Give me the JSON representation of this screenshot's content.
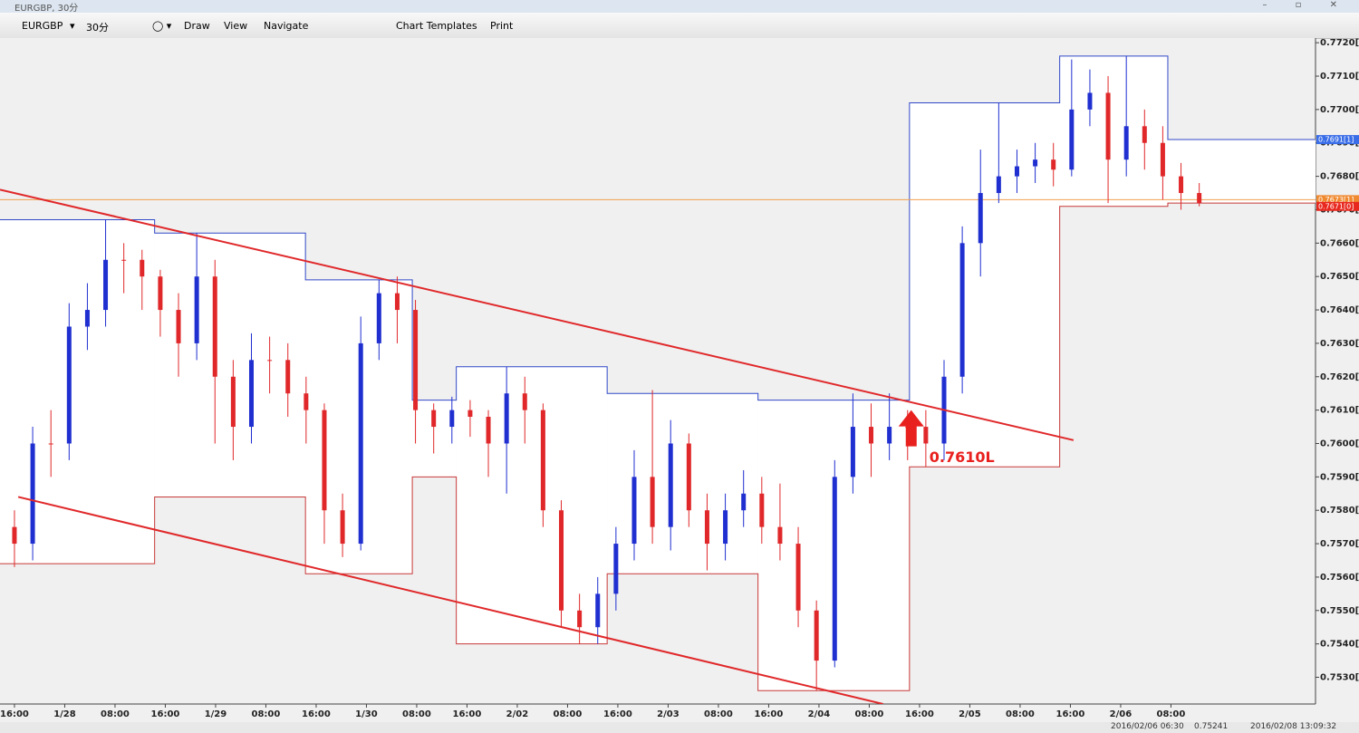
{
  "window": {
    "title": "EURGBP, 30分"
  },
  "toolbar": {
    "symbol": "EURGBP",
    "timeframe": "30分",
    "menus": [
      "Draw",
      "View",
      "Navigate",
      "Chart Templates",
      "Print"
    ]
  },
  "status_bar": {
    "time": "2016/02/06 06:30",
    "price": "0.75241",
    "clock": "2016/02/08 13:09:32"
  },
  "chart_data": {
    "type": "candlestick",
    "xlim": [
      -2.3,
      207
    ],
    "ylim": [
      0.7522,
      0.77214
    ],
    "xticks": [
      {
        "value": 0,
        "label": "16:00"
      },
      {
        "value": 8,
        "label": "1/28"
      },
      {
        "value": 16,
        "label": "08:00"
      },
      {
        "value": 24,
        "label": "16:00"
      },
      {
        "value": 32,
        "label": "1/29"
      },
      {
        "value": 40,
        "label": "08:00"
      },
      {
        "value": 48,
        "label": "16:00"
      },
      {
        "value": 56,
        "label": "1/30"
      },
      {
        "value": 64,
        "label": "08:00"
      },
      {
        "value": 72,
        "label": "16:00"
      },
      {
        "value": 80,
        "label": "2/02"
      },
      {
        "value": 88,
        "label": "08:00"
      },
      {
        "value": 96,
        "label": "16:00"
      },
      {
        "value": 104,
        "label": "2/03"
      },
      {
        "value": 112,
        "label": "08:00"
      },
      {
        "value": 120,
        "label": "16:00"
      },
      {
        "value": 128,
        "label": "2/04"
      },
      {
        "value": 136,
        "label": "08:00"
      },
      {
        "value": 144,
        "label": "16:00"
      },
      {
        "value": 152,
        "label": "2/05"
      },
      {
        "value": 160,
        "label": "08:00"
      },
      {
        "value": 168,
        "label": "16:00"
      },
      {
        "value": 176,
        "label": "2/06"
      },
      {
        "value": 184,
        "label": "08:00"
      }
    ],
    "yticks": [
      {
        "value": 0.753,
        "label": "0.7530[0]"
      },
      {
        "value": 0.754,
        "label": "0.7540[0]"
      },
      {
        "value": 0.755,
        "label": "0.7550[0]"
      },
      {
        "value": 0.756,
        "label": "0.7560[0]"
      },
      {
        "value": 0.757,
        "label": "0.7570[0]"
      },
      {
        "value": 0.758,
        "label": "0.7580[0]"
      },
      {
        "value": 0.759,
        "label": "0.7590[0]"
      },
      {
        "value": 0.76,
        "label": "0.7600[0]"
      },
      {
        "value": 0.761,
        "label": "0.7610[0]"
      },
      {
        "value": 0.762,
        "label": "0.7620[0]"
      },
      {
        "value": 0.763,
        "label": "0.7630[0]"
      },
      {
        "value": 0.764,
        "label": "0.7640[0]"
      },
      {
        "value": 0.765,
        "label": "0.7650[0]"
      },
      {
        "value": 0.766,
        "label": "0.7660[0]"
      },
      {
        "value": 0.767,
        "label": "0.7670[0]"
      },
      {
        "value": 0.768,
        "label": "0.7680[0]"
      },
      {
        "value": 0.769,
        "label": "0.7690[0]"
      },
      {
        "value": 0.77,
        "label": "0.7700[0]"
      },
      {
        "value": 0.771,
        "label": "0.7710[0]"
      },
      {
        "value": 0.772,
        "label": "0.7720[0]"
      }
    ],
    "up_color": "#1f2fd0",
    "down_color": "#e0282a",
    "x": [
      0,
      2.9,
      5.8,
      8.7,
      11.6,
      14.5,
      17.4,
      20.3,
      23.2,
      26.1,
      29,
      31.9,
      34.8,
      37.7,
      40.6,
      43.5,
      46.4,
      49.3,
      52.2,
      55.1,
      58,
      60.9,
      63.8,
      66.7,
      69.6,
      72.5,
      75.4,
      78.3,
      81.2,
      84.1,
      87,
      89.9,
      92.8,
      95.7,
      98.6,
      101.5,
      104.4,
      107.3,
      110.2,
      113.1,
      116,
      118.9,
      121.8,
      124.7,
      127.6,
      130.5,
      133.4,
      136.3,
      139.2,
      142.1,
      145,
      147.9,
      150.8,
      153.7,
      156.6,
      159.5,
      162.4,
      165.3,
      168.2,
      171.1,
      174,
      176.9,
      179.8,
      182.7,
      185.6,
      188.5
    ],
    "open": [
      0.7575,
      0.757,
      0.76,
      0.76,
      0.7635,
      0.764,
      0.7655,
      0.7655,
      0.765,
      0.764,
      0.763,
      0.765,
      0.762,
      0.7605,
      0.7625,
      0.7625,
      0.7615,
      0.761,
      0.758,
      0.757,
      0.763,
      0.7645,
      0.764,
      0.761,
      0.7605,
      0.761,
      0.7608,
      0.76,
      0.7615,
      0.761,
      0.758,
      0.755,
      0.7545,
      0.7555,
      0.757,
      0.759,
      0.7575,
      0.76,
      0.758,
      0.757,
      0.758,
      0.7585,
      0.7575,
      0.757,
      0.755,
      0.7535,
      0.759,
      0.7605,
      0.76,
      0.7605,
      0.7605,
      0.76,
      0.762,
      0.766,
      0.7675,
      0.768,
      0.7683,
      0.7685,
      0.7682,
      0.77,
      0.7705,
      0.7685,
      0.7695,
      0.769,
      0.768,
      0.7675
    ],
    "high": [
      0.758,
      0.7605,
      0.761,
      0.7642,
      0.7648,
      0.7667,
      0.766,
      0.7658,
      0.7652,
      0.7645,
      0.7663,
      0.7655,
      0.7625,
      0.7633,
      0.7632,
      0.763,
      0.762,
      0.7612,
      0.7585,
      0.7638,
      0.7649,
      0.765,
      0.7643,
      0.7612,
      0.7614,
      0.7613,
      0.761,
      0.7623,
      0.762,
      0.7612,
      0.7583,
      0.7555,
      0.756,
      0.7575,
      0.7598,
      0.7616,
      0.7607,
      0.7603,
      0.7585,
      0.7585,
      0.7592,
      0.759,
      0.7588,
      0.7575,
      0.7553,
      0.7595,
      0.7615,
      0.7612,
      0.7615,
      0.761,
      0.761,
      0.7625,
      0.7665,
      0.7688,
      0.7702,
      0.7688,
      0.769,
      0.769,
      0.7715,
      0.7712,
      0.771,
      0.7716,
      0.77,
      0.7695,
      0.7684,
      0.7678
    ],
    "low": [
      0.7563,
      0.7565,
      0.759,
      0.7595,
      0.7628,
      0.7635,
      0.7645,
      0.764,
      0.7632,
      0.762,
      0.7625,
      0.76,
      0.7595,
      0.76,
      0.7615,
      0.7608,
      0.76,
      0.757,
      0.7566,
      0.7568,
      0.7625,
      0.763,
      0.76,
      0.7597,
      0.76,
      0.7602,
      0.759,
      0.7585,
      0.76,
      0.7575,
      0.7545,
      0.754,
      0.754,
      0.755,
      0.7565,
      0.757,
      0.7568,
      0.7575,
      0.7562,
      0.7565,
      0.7575,
      0.757,
      0.7565,
      0.7545,
      0.7526,
      0.7533,
      0.7585,
      0.759,
      0.7595,
      0.7595,
      0.7593,
      0.7595,
      0.7615,
      0.765,
      0.7672,
      0.7675,
      0.7678,
      0.7677,
      0.768,
      0.7695,
      0.7672,
      0.768,
      0.7682,
      0.7673,
      0.767,
      0.7671
    ],
    "close": [
      0.757,
      0.76,
      0.76,
      0.7635,
      0.764,
      0.7655,
      0.7655,
      0.765,
      0.764,
      0.763,
      0.765,
      0.762,
      0.7605,
      0.7625,
      0.7625,
      0.7615,
      0.761,
      0.758,
      0.757,
      0.763,
      0.7645,
      0.764,
      0.761,
      0.7605,
      0.761,
      0.7608,
      0.76,
      0.7615,
      0.761,
      0.758,
      0.755,
      0.7545,
      0.7555,
      0.757,
      0.759,
      0.7575,
      0.76,
      0.758,
      0.757,
      0.758,
      0.7585,
      0.7575,
      0.757,
      0.755,
      0.7535,
      0.759,
      0.7605,
      0.76,
      0.7605,
      0.7605,
      0.76,
      0.762,
      0.766,
      0.7675,
      0.768,
      0.7683,
      0.7685,
      0.7682,
      0.77,
      0.7705,
      0.7685,
      0.7695,
      0.769,
      0.768,
      0.7675,
      0.7672
    ],
    "boxes": {
      "bins": [
        -2.3,
        22.3,
        46.3,
        63.3,
        70.3,
        94.3,
        118.3,
        142.4,
        166.3,
        183.5,
        207
      ],
      "high": [
        0.7667,
        0.7663,
        0.7649,
        0.7613,
        0.7623,
        0.7615,
        0.7613,
        0.7702,
        0.7716,
        0.7691
      ],
      "low": [
        0.7564,
        0.7584,
        0.7561,
        0.759,
        0.754,
        0.7561,
        0.7526,
        0.7593,
        0.7671,
        0.7672
      ],
      "high_color": "#3048c8",
      "low_color": "#c83838"
    },
    "trendlines": [
      {
        "x": [
          -2.3,
          168.5
        ],
        "values": [
          0.7676,
          0.7601
        ],
        "color": "#e0282a"
      },
      {
        "x": [
          0.6,
          138.2
        ],
        "values": [
          0.7584,
          0.7522
        ],
        "color": "#e0282a"
      }
    ],
    "hline": {
      "value": 0.7673,
      "color": "#f0a050"
    },
    "price_tags": [
      {
        "value": 0.7691,
        "label": "0.7691[1]",
        "color": "#3a6ee8"
      },
      {
        "value": 0.7673,
        "label": "0.7673[1]",
        "color": "#f08a30"
      },
      {
        "value": 0.7671,
        "label": "0.7671[0]",
        "color": "#e8281e"
      }
    ],
    "annotation": {
      "text": "0.7610L",
      "x": 147,
      "value": 0.761,
      "color": "#e8201e"
    }
  }
}
